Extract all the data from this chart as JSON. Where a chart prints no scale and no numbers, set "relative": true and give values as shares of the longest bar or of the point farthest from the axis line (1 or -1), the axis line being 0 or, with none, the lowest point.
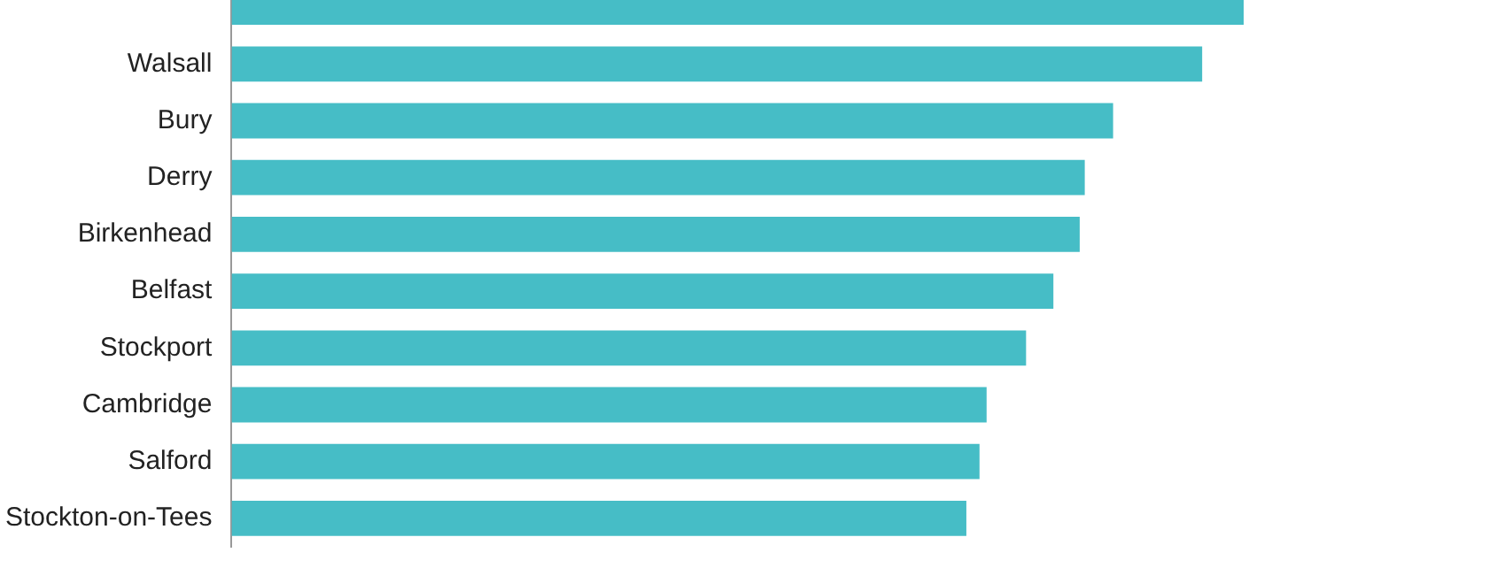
{
  "chart_data": {
    "type": "bar",
    "orientation": "horizontal",
    "relative": true,
    "categories": [
      null,
      "Walsall",
      "Bury",
      "Derry",
      "Birkenhead",
      "Belfast",
      "Stockport",
      "Cambridge",
      "Salford",
      "Stockton-on-Tees"
    ],
    "values": [
      1,
      0.959,
      0.871,
      0.843,
      0.838,
      0.812,
      0.785,
      0.746,
      0.739,
      0.726
    ],
    "color": "#46bdc6"
  }
}
